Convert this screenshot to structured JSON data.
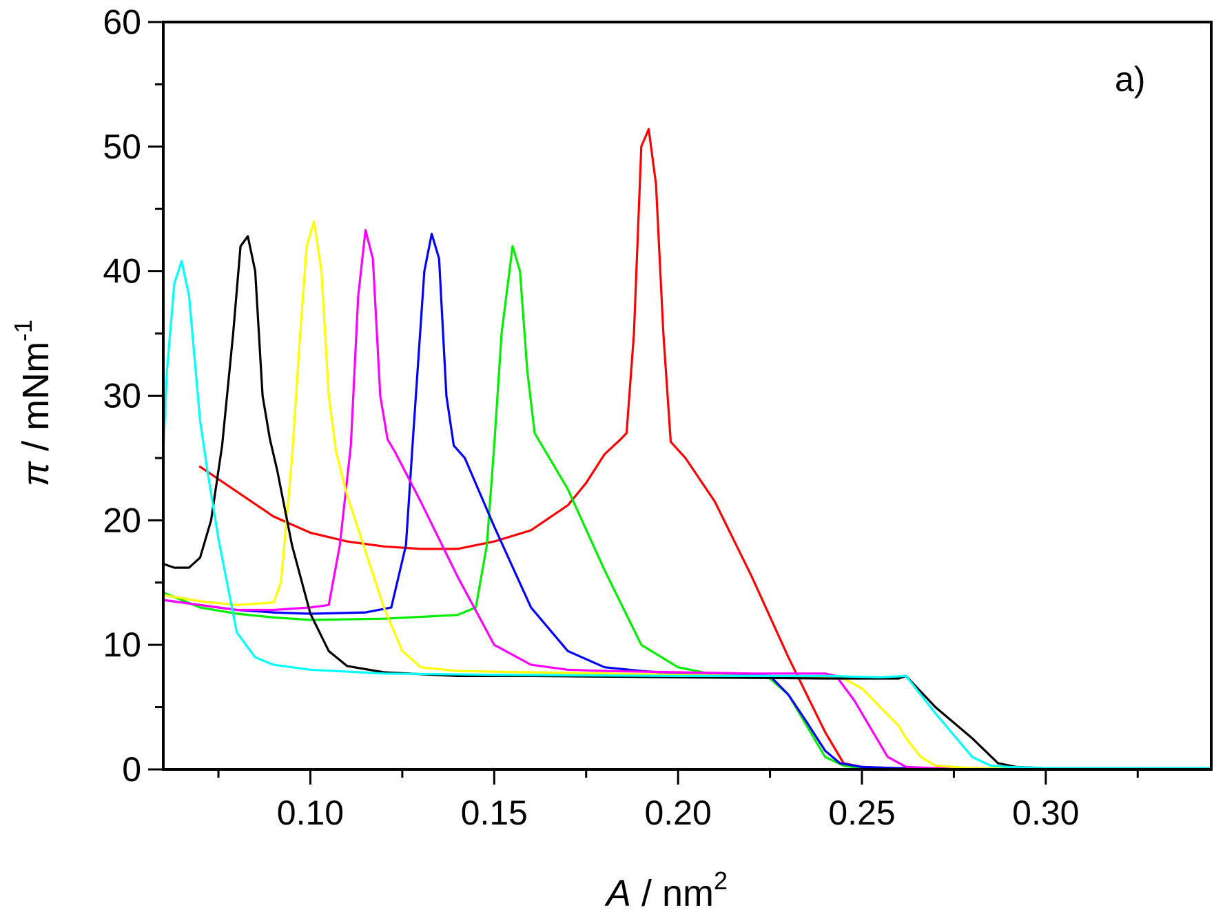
{
  "chart_data": {
    "type": "line",
    "panel_label": "a)",
    "xlabel": {
      "symbol": "A",
      "rest": " / nm",
      "superscript": "2"
    },
    "ylabel": {
      "symbol": "π",
      "rest": " / mNm",
      "superscript": "-1"
    },
    "xlim": [
      0.06,
      0.345
    ],
    "ylim": [
      0,
      60
    ],
    "x_ticks": [
      0.1,
      0.15,
      0.2,
      0.25,
      0.3
    ],
    "x_tick_labels": [
      "0.10",
      "0.15",
      "0.20",
      "0.25",
      "0.30"
    ],
    "x_minor_ticks": [
      0.075,
      0.125,
      0.175,
      0.225,
      0.275,
      0.325
    ],
    "y_ticks": [
      0,
      10,
      20,
      30,
      40,
      50,
      60
    ],
    "y_tick_labels": [
      "0",
      "10",
      "20",
      "30",
      "40",
      "50",
      "60"
    ],
    "y_minor_ticks": [
      5,
      15,
      25,
      35,
      45,
      55
    ],
    "grid": false,
    "legend": "none",
    "series": [
      {
        "name": "red",
        "color": "#ff0000",
        "x": [
          0.07,
          0.08,
          0.09,
          0.1,
          0.11,
          0.12,
          0.13,
          0.14,
          0.15,
          0.16,
          0.17,
          0.175,
          0.18,
          0.184,
          0.186,
          0.188,
          0.19,
          0.192,
          0.194,
          0.196,
          0.198,
          0.202,
          0.21,
          0.22,
          0.23,
          0.24,
          0.245,
          0.25,
          0.26,
          0.345
        ],
        "y": [
          24.3,
          22.3,
          20.3,
          19.0,
          18.3,
          17.9,
          17.7,
          17.7,
          18.3,
          19.2,
          21.2,
          23.0,
          25.3,
          26.4,
          27.0,
          35.0,
          50.0,
          51.4,
          47.0,
          35.0,
          26.3,
          25.0,
          21.5,
          15.5,
          9.0,
          3.0,
          0.5,
          0.2,
          0.1,
          0.1
        ]
      },
      {
        "name": "green",
        "color": "#00ee00",
        "x": [
          0.06,
          0.07,
          0.08,
          0.09,
          0.1,
          0.12,
          0.14,
          0.145,
          0.148,
          0.15,
          0.152,
          0.155,
          0.157,
          0.159,
          0.161,
          0.163,
          0.17,
          0.18,
          0.19,
          0.2,
          0.21,
          0.22,
          0.225,
          0.23,
          0.235,
          0.24,
          0.245,
          0.25,
          0.26,
          0.345
        ],
        "y": [
          14.2,
          13.0,
          12.5,
          12.2,
          12.0,
          12.1,
          12.4,
          13.0,
          18.0,
          26.0,
          35.0,
          42.0,
          40.0,
          32.0,
          27.0,
          26.0,
          22.5,
          16.0,
          10.0,
          8.2,
          7.6,
          7.5,
          7.3,
          6.0,
          3.5,
          1.0,
          0.3,
          0.1,
          0.1,
          0.1
        ]
      },
      {
        "name": "blue",
        "color": "#0000ff",
        "x": [
          0.06,
          0.07,
          0.08,
          0.09,
          0.1,
          0.115,
          0.122,
          0.126,
          0.128,
          0.131,
          0.133,
          0.135,
          0.137,
          0.139,
          0.142,
          0.15,
          0.16,
          0.17,
          0.18,
          0.19,
          0.2,
          0.21,
          0.225,
          0.23,
          0.235,
          0.24,
          0.244,
          0.25,
          0.26,
          0.345
        ],
        "y": [
          13.6,
          13.2,
          12.8,
          12.6,
          12.5,
          12.6,
          13.0,
          18.0,
          27.0,
          40.0,
          43.0,
          41.0,
          30.0,
          26.0,
          25.0,
          19.5,
          13.0,
          9.5,
          8.2,
          7.9,
          7.7,
          7.6,
          7.5,
          6.0,
          3.8,
          1.5,
          0.5,
          0.2,
          0.1,
          0.1
        ]
      },
      {
        "name": "magenta",
        "color": "#ff00ff",
        "x": [
          0.06,
          0.07,
          0.08,
          0.09,
          0.1,
          0.105,
          0.108,
          0.111,
          0.113,
          0.115,
          0.117,
          0.119,
          0.121,
          0.123,
          0.13,
          0.14,
          0.15,
          0.16,
          0.17,
          0.18,
          0.2,
          0.22,
          0.24,
          0.243,
          0.248,
          0.253,
          0.257,
          0.262,
          0.27,
          0.345
        ],
        "y": [
          13.6,
          13.2,
          12.8,
          12.8,
          13.0,
          13.2,
          18.0,
          26.0,
          38.0,
          43.3,
          41.0,
          30.0,
          26.5,
          25.5,
          21.5,
          15.5,
          10.0,
          8.4,
          8.0,
          7.9,
          7.8,
          7.7,
          7.7,
          7.5,
          5.5,
          3.0,
          1.0,
          0.2,
          0.1,
          0.1
        ]
      },
      {
        "name": "yellow",
        "color": "#ffff00",
        "x": [
          0.06,
          0.07,
          0.08,
          0.09,
          0.092,
          0.095,
          0.097,
          0.099,
          0.101,
          0.103,
          0.105,
          0.107,
          0.11,
          0.12,
          0.125,
          0.13,
          0.14,
          0.16,
          0.2,
          0.24,
          0.245,
          0.25,
          0.26,
          0.262,
          0.266,
          0.27,
          0.28,
          0.345
        ],
        "y": [
          14.0,
          13.5,
          13.2,
          13.4,
          15.0,
          25.0,
          34.0,
          42.0,
          44.0,
          40.0,
          30.0,
          25.5,
          22.0,
          13.0,
          9.5,
          8.2,
          7.9,
          7.8,
          7.6,
          7.4,
          7.3,
          6.5,
          3.5,
          2.5,
          1.0,
          0.3,
          0.1,
          0.1
        ]
      },
      {
        "name": "black",
        "color": "#000000",
        "x": [
          0.06,
          0.063,
          0.067,
          0.07,
          0.073,
          0.076,
          0.079,
          0.081,
          0.083,
          0.085,
          0.087,
          0.089,
          0.091,
          0.095,
          0.1,
          0.105,
          0.11,
          0.12,
          0.14,
          0.16,
          0.2,
          0.24,
          0.26,
          0.262,
          0.27,
          0.28,
          0.287,
          0.292,
          0.3,
          0.345
        ],
        "y": [
          16.5,
          16.2,
          16.2,
          17.0,
          20.0,
          26.0,
          35.0,
          42.0,
          42.8,
          40.0,
          30.0,
          26.5,
          24.0,
          18.0,
          12.5,
          9.5,
          8.3,
          7.8,
          7.5,
          7.5,
          7.4,
          7.3,
          7.3,
          7.5,
          5.0,
          2.5,
          0.5,
          0.2,
          0.1,
          0.1
        ]
      },
      {
        "name": "cyan",
        "color": "#00ffff",
        "x": [
          0.06,
          0.061,
          0.063,
          0.065,
          0.067,
          0.07,
          0.072,
          0.075,
          0.08,
          0.085,
          0.09,
          0.1,
          0.12,
          0.15,
          0.2,
          0.24,
          0.255,
          0.262,
          0.27,
          0.28,
          0.285,
          0.29,
          0.3,
          0.345
        ],
        "y": [
          25.5,
          32.0,
          39.0,
          40.8,
          38.0,
          28.0,
          24.0,
          18.5,
          11.0,
          9.0,
          8.4,
          8.0,
          7.7,
          7.6,
          7.5,
          7.5,
          7.4,
          7.5,
          4.5,
          1.0,
          0.3,
          0.2,
          0.1,
          0.1
        ]
      }
    ]
  }
}
